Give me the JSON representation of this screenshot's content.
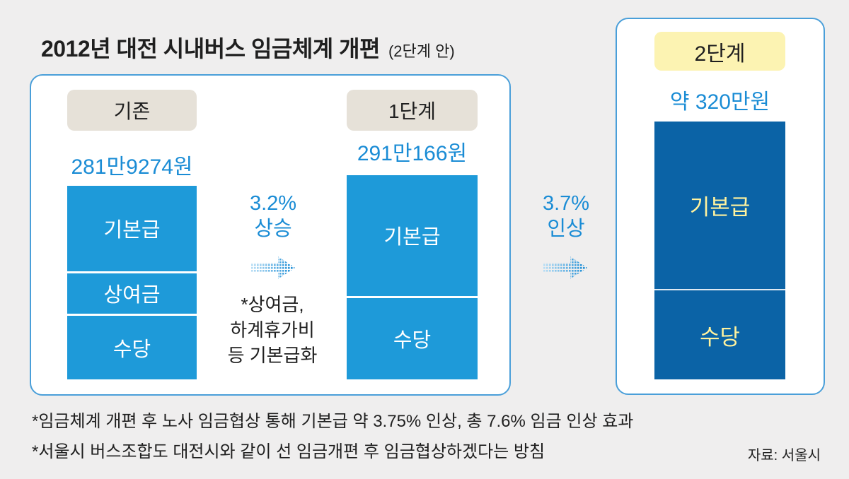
{
  "colors": {
    "background": "#efeeee",
    "panel_border": "#4a9fd9",
    "accent_text": "#1a8cd5",
    "stage_pill": "#e6e1d8",
    "final_stage_pill": "#fcf3b2"
  },
  "icons": {
    "transition_arrow": "dotted-arrow-right-icon"
  },
  "chart_data": {
    "type": "bar",
    "stacked": true,
    "title": "2012년 대전 시내버스 임금체계 개편",
    "subtitle": "(2단계 안)",
    "categories": [
      "기존",
      "1단계",
      "2단계"
    ],
    "bars": [
      {
        "total_label": "281만9274원",
        "total": 2819274,
        "fill": "#1e9ad9",
        "label_color": "#ffffff",
        "segments": [
          {
            "name": "기본급",
            "share": 0.44
          },
          {
            "name": "상여금",
            "share": 0.22
          },
          {
            "name": "수당",
            "share": 0.34
          }
        ]
      },
      {
        "total_label": "291만166원",
        "total": 2910166,
        "fill": "#1e9ad9",
        "label_color": "#ffffff",
        "segments": [
          {
            "name": "기본급",
            "share": 0.59
          },
          {
            "name": "수당",
            "share": 0.41
          }
        ]
      },
      {
        "total_label": "약 320만원",
        "total": 3200000,
        "fill": "#0b63a6",
        "label_color": "#fff29e",
        "segments": [
          {
            "name": "기본급",
            "share": 0.65
          },
          {
            "name": "수당",
            "share": 0.35
          }
        ]
      }
    ],
    "transitions": [
      {
        "rate": "3.2%",
        "verb": "상승",
        "note": [
          "*상여금,",
          "하계휴가비",
          "등 기본급화"
        ]
      },
      {
        "rate": "3.7%",
        "verb": "인상"
      }
    ]
  },
  "footnotes": [
    "*임금체계 개편 후 노사 임금협상 통해 기본급 약 3.75% 인상, 총 7.6% 임금 인상 효과",
    "*서울시 버스조합도 대전시와 같이 선 임금개편 후 임금협상하겠다는 방침"
  ],
  "source": "자료: 서울시"
}
